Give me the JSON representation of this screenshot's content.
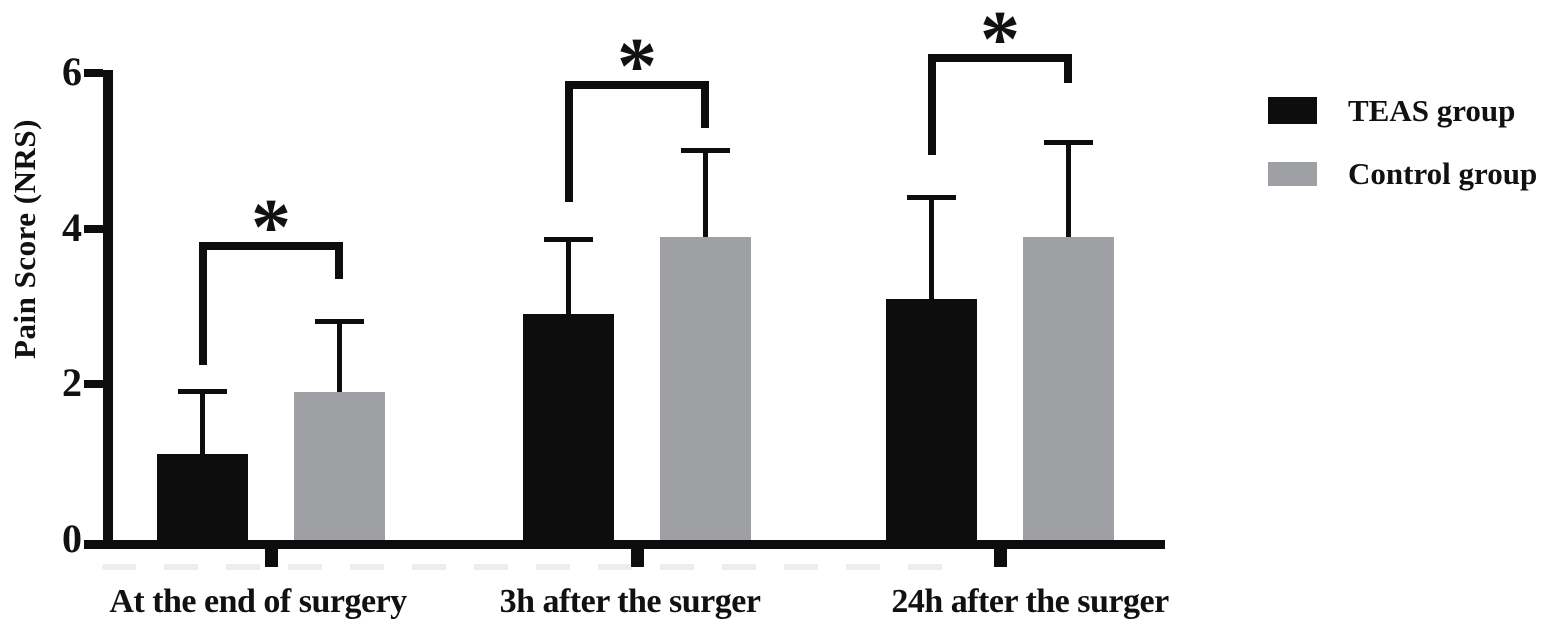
{
  "chart_data": {
    "type": "bar",
    "title": "",
    "ylabel": "Pain Score (NRS)",
    "xlabel": "",
    "categories": [
      "At the end of surgery",
      "3h after the surger",
      "24h after the surger"
    ],
    "yticks": [
      0,
      2,
      4,
      6
    ],
    "ylim": [
      0,
      6.7
    ],
    "grid": false,
    "legend_position": "right",
    "series": [
      {
        "name": "TEAS group",
        "color": "#0d0d0d",
        "values": [
          1.1,
          2.9,
          3.1
        ],
        "error_bar_top": [
          1.9,
          3.85,
          4.4
        ]
      },
      {
        "name": "Control group",
        "color": "#9fa0a4",
        "values": [
          1.9,
          3.9,
          3.9
        ],
        "error_bar_top": [
          2.8,
          5.0,
          5.1
        ]
      }
    ],
    "significance_brackets": [
      {
        "group_index": 0,
        "label": "*",
        "bar_y": 3.83,
        "left_drop_to": 2.25,
        "right_drop_to": 3.35,
        "star_y": 4.22
      },
      {
        "group_index": 1,
        "label": "*",
        "bar_y": 5.9,
        "left_drop_to": 4.35,
        "right_drop_to": 5.3,
        "star_y": 6.29
      },
      {
        "group_index": 2,
        "label": "*",
        "bar_y": 6.25,
        "left_drop_to": 4.95,
        "right_drop_to": 5.88,
        "star_y": 6.63
      }
    ]
  }
}
